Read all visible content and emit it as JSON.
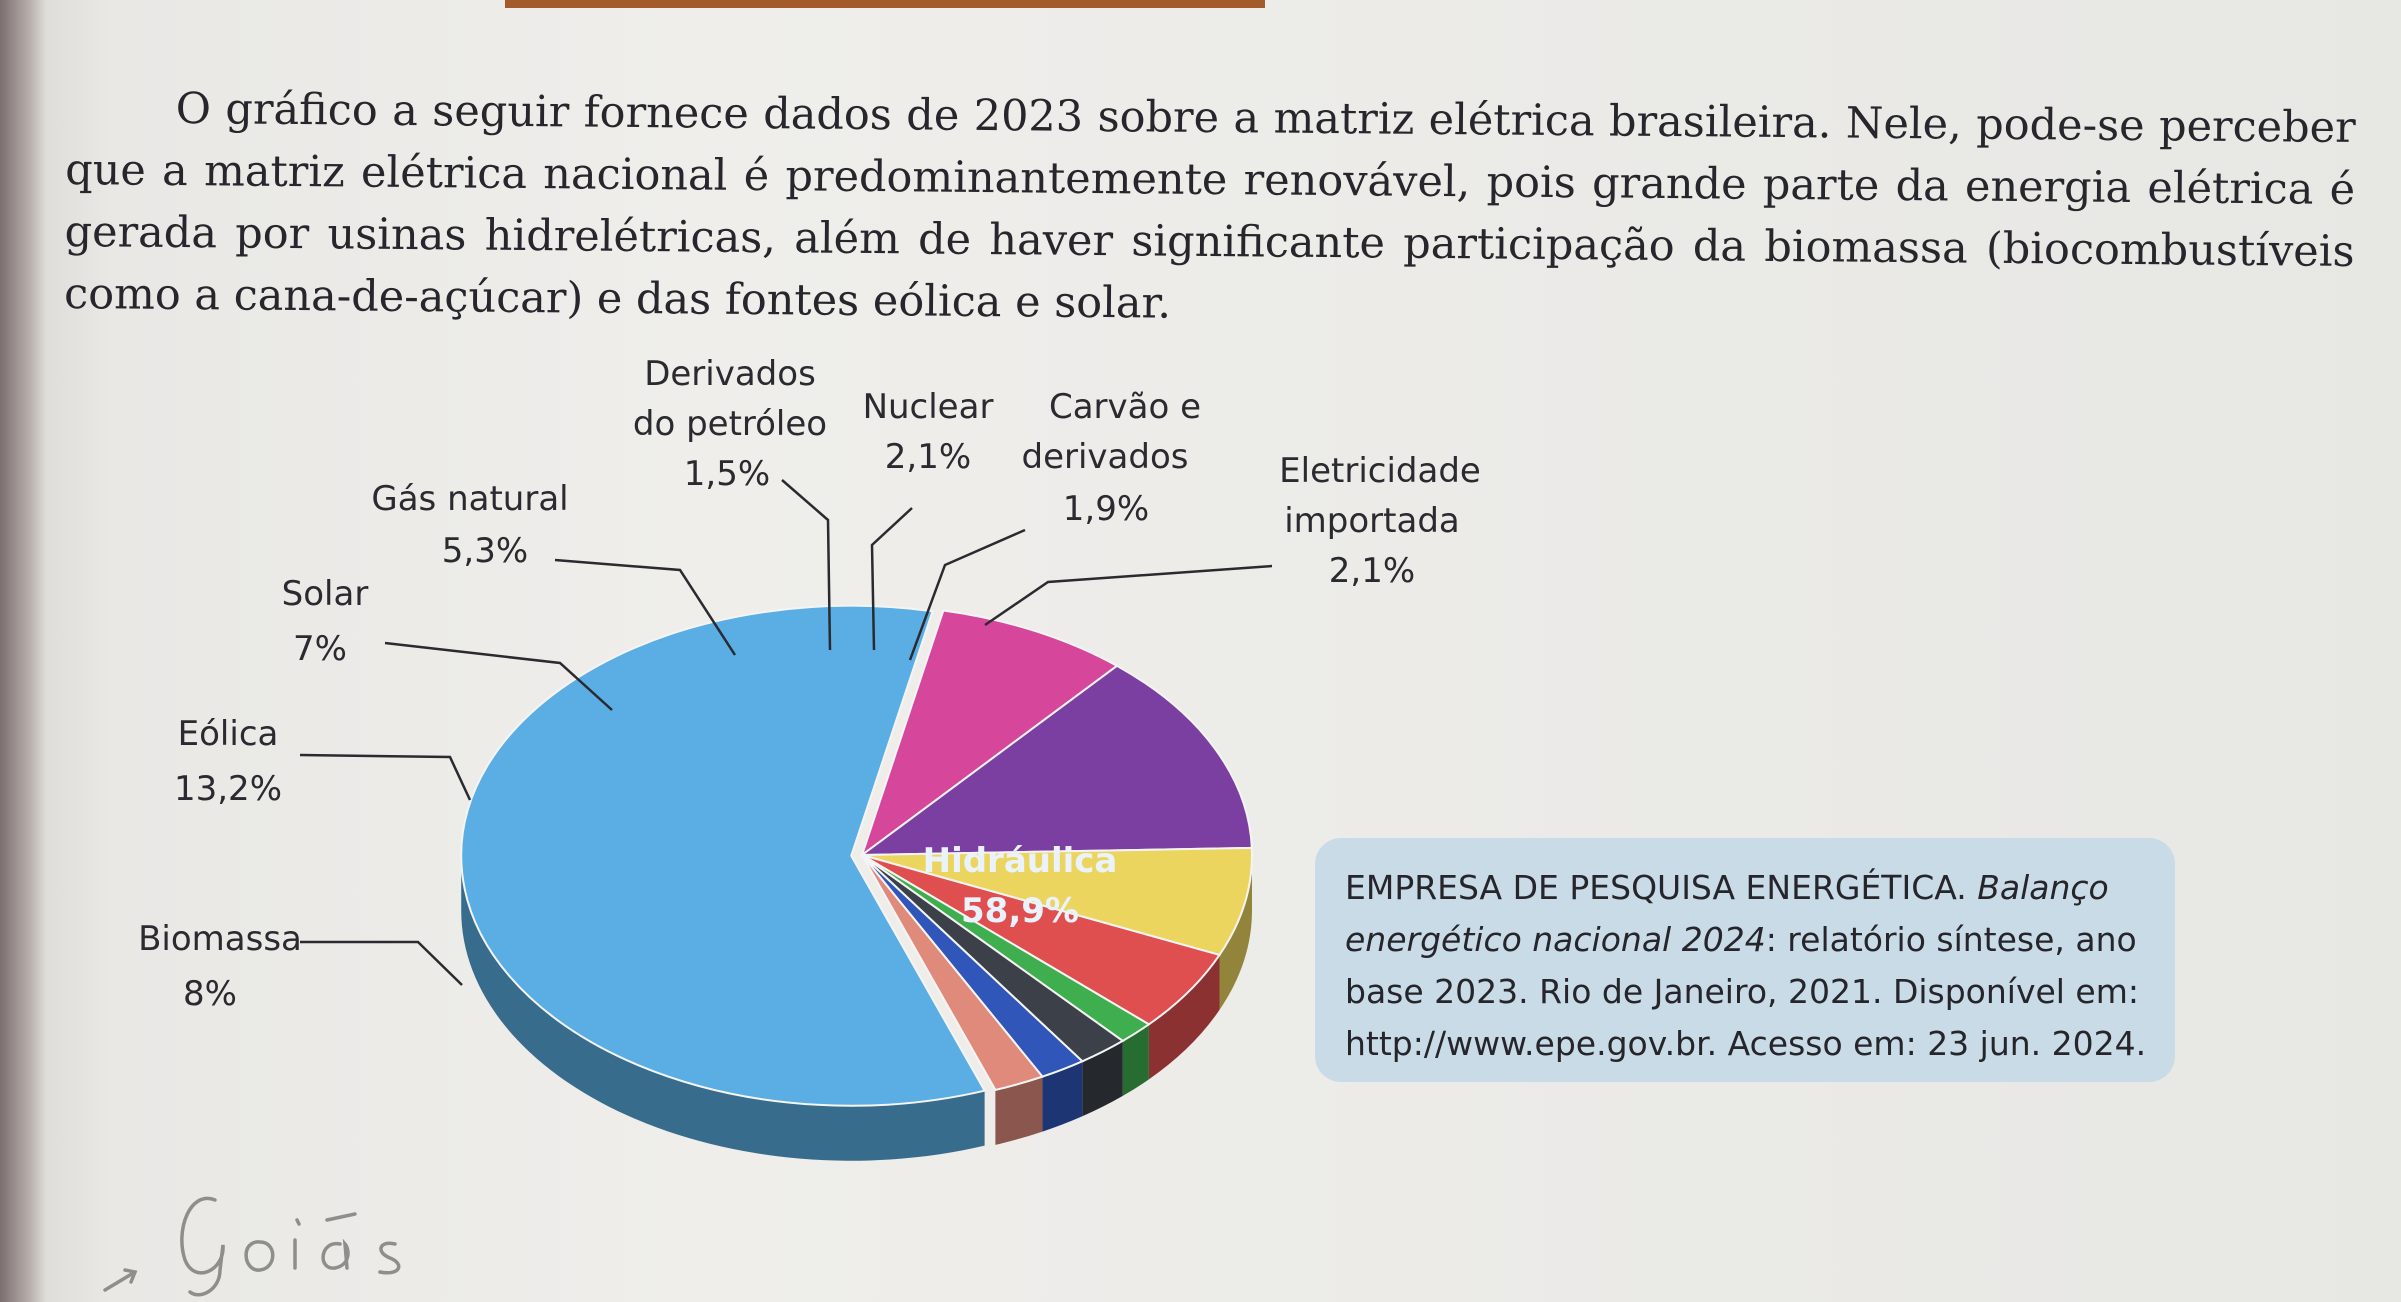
{
  "intro": {
    "text": "O gráfico a seguir fornece dados de 2023 sobre a matriz elétrica brasileira. Nele, pode-se perceber que a matriz elétrica nacional é predominantemente renovável, pois grande parte da energia elétrica é gerada por usinas hidrelétricas, além de haver significante participação da biomassa (biocombustíveis como a cana-de-açúcar) e das fontes eólica e solar."
  },
  "chart_data": {
    "type": "pie",
    "title": "",
    "series": [
      {
        "label": "Hidráulica",
        "value_label": "58,9%",
        "value": 58.9,
        "color": "#5aaee3"
      },
      {
        "label": "Biomassa",
        "value_label": "8%",
        "value": 8.0,
        "color": "#d6479b"
      },
      {
        "label": "Eólica",
        "value_label": "13,2%",
        "value": 13.2,
        "color": "#7a3fa0"
      },
      {
        "label": "Solar",
        "value_label": "7%",
        "value": 7.0,
        "color": "#ecd55f"
      },
      {
        "label": "Gás natural",
        "value_label": "5,3%",
        "value": 5.3,
        "color": "#e04f4f"
      },
      {
        "label": "Derivados do petróleo",
        "value_label": "1,5%",
        "value": 1.5,
        "color": "#3fae4f"
      },
      {
        "label": "Nuclear",
        "value_label": "2,1%",
        "value": 2.1,
        "color": "#3c4048"
      },
      {
        "label": "Carvão e derivados",
        "value_label": "1,9%",
        "value": 1.9,
        "color": "#2f56b8"
      },
      {
        "label": "Eletricidade importada",
        "value_label": "2,1%",
        "value": 2.1,
        "color": "#e08a7c"
      }
    ]
  },
  "source": {
    "author": "EMPRESA DE PESQUISA ENERGÉTICA.",
    "title_italic": "Balanço energético nacional 2024",
    "rest": ": relatório síntese, ano base 2023. Rio de Janeiro, 2021. Disponível em: http://www.epe.gov.br. Acesso em: 23 jun. 2024."
  },
  "handwriting": {
    "text": "Goiás"
  }
}
